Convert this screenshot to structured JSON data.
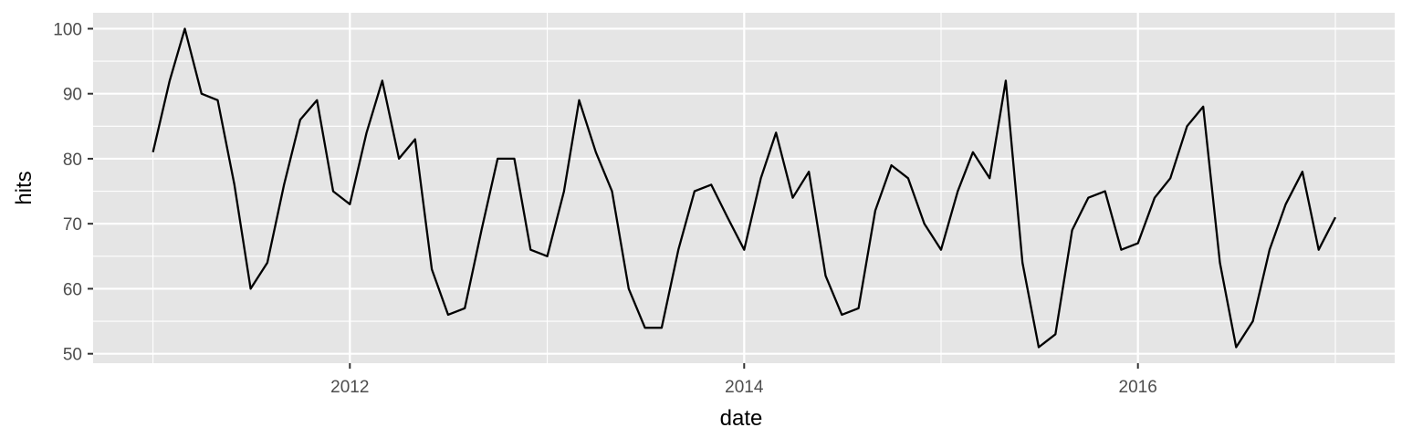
{
  "chart_data": {
    "type": "line",
    "xlabel": "date",
    "ylabel": "hits",
    "x_ticks": [
      "2012",
      "2014",
      "2016"
    ],
    "y_ticks": [
      50,
      60,
      70,
      80,
      90,
      100
    ],
    "xlim": [
      "2010-09-12",
      "2017-04-21"
    ],
    "ylim": [
      48.55,
      102.45
    ],
    "grid": true,
    "colors": {
      "panel": "#e5e5e5",
      "grid": "#ffffff",
      "line": "#000000",
      "tick_text": "#4d4d4d"
    },
    "x": [
      "2011-01-01",
      "2011-02-01",
      "2011-03-01",
      "2011-04-01",
      "2011-05-01",
      "2011-06-01",
      "2011-07-01",
      "2011-08-01",
      "2011-09-01",
      "2011-10-01",
      "2011-11-01",
      "2011-12-01",
      "2012-01-01",
      "2012-02-01",
      "2012-03-01",
      "2012-04-01",
      "2012-05-01",
      "2012-06-01",
      "2012-07-01",
      "2012-08-01",
      "2012-09-01",
      "2012-10-01",
      "2012-11-01",
      "2012-12-01",
      "2013-01-01",
      "2013-02-01",
      "2013-03-01",
      "2013-04-01",
      "2013-05-01",
      "2013-06-01",
      "2013-07-01",
      "2013-08-01",
      "2013-09-01",
      "2013-10-01",
      "2013-11-01",
      "2013-12-01",
      "2014-01-01",
      "2014-02-01",
      "2014-03-01",
      "2014-04-01",
      "2014-05-01",
      "2014-06-01",
      "2014-07-01",
      "2014-08-01",
      "2014-09-01",
      "2014-10-01",
      "2014-11-01",
      "2014-12-01",
      "2015-01-01",
      "2015-02-01",
      "2015-03-01",
      "2015-04-01",
      "2015-05-01",
      "2015-06-01",
      "2015-07-01",
      "2015-08-01",
      "2015-09-01",
      "2015-10-01",
      "2015-11-01",
      "2015-12-01",
      "2016-01-01",
      "2016-02-01",
      "2016-03-01",
      "2016-04-01",
      "2016-05-01",
      "2016-06-01",
      "2016-07-01",
      "2016-08-01",
      "2016-09-01",
      "2016-10-01",
      "2016-11-01",
      "2016-12-01",
      "2017-01-01"
    ],
    "series": [
      {
        "values": [
          81,
          92,
          100,
          90,
          89,
          76,
          60,
          64,
          76,
          86,
          89,
          75,
          73,
          84,
          92,
          80,
          83,
          63,
          56,
          57,
          69,
          80,
          80,
          66,
          65,
          75,
          89,
          81,
          75,
          60,
          54,
          54,
          66,
          75,
          76,
          71,
          66,
          77,
          84,
          74,
          78,
          62,
          56,
          57,
          72,
          79,
          77,
          70,
          66,
          75,
          81,
          77,
          92,
          64,
          51,
          53,
          69,
          74,
          75,
          66,
          67,
          74,
          77,
          85,
          88,
          64,
          51,
          55,
          66,
          73,
          78,
          66,
          71
        ]
      }
    ]
  }
}
